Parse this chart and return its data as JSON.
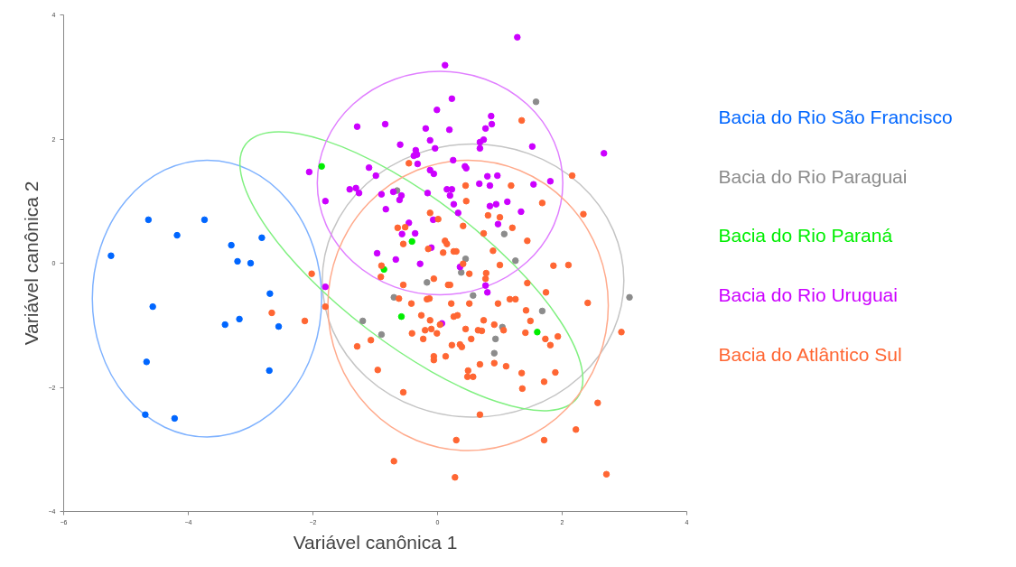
{
  "chart_data": {
    "type": "scatter",
    "xlabel": "Variável canônica 1",
    "ylabel": "Variável canônica 2",
    "xlim": [
      -6,
      4
    ],
    "ylim": [
      -4,
      4
    ],
    "xticks": [
      -6,
      -4,
      -2,
      0,
      2,
      4
    ],
    "yticks": [
      -4,
      -2,
      0,
      2,
      4
    ],
    "grid": false,
    "legend": "right",
    "marker": "circle",
    "series": [
      {
        "name": "Bacia do Rio São Francisco",
        "color": "#0066ff",
        "x": [
          -5.24,
          -4.64,
          -4.18,
          -3.74,
          -3.31,
          -3.21,
          -3.0,
          -2.82,
          -2.69,
          -3.41,
          -3.18,
          -2.55,
          -4.57,
          -4.67,
          -2.7,
          -4.69,
          -4.22
        ],
        "values": [
          0.12,
          0.7,
          0.45,
          0.7,
          0.29,
          0.03,
          0.0,
          0.41,
          -0.49,
          -0.99,
          -0.9,
          -1.02,
          -0.7,
          -1.59,
          -1.73,
          -2.44,
          -2.5
        ]
      },
      {
        "name": "Bacia do Rio Paraguai",
        "color": "#8c8c8c",
        "x": [
          1.58,
          1.07,
          0.45,
          1.25,
          -0.65,
          0.38,
          -0.17,
          -0.7,
          0.57,
          -1.2,
          -0.9,
          1.04,
          0.93,
          0.91,
          1.68,
          3.08
        ],
        "values": [
          2.6,
          0.47,
          0.07,
          0.04,
          1.17,
          -0.15,
          -0.31,
          -0.55,
          -0.52,
          -0.93,
          -1.15,
          -1.03,
          -1.22,
          -1.45,
          -0.77,
          -0.55
        ]
      },
      {
        "name": "Bacia do Rio Paraná",
        "color": "#00ee00",
        "x": [
          -1.86,
          -0.41,
          -0.86,
          -0.58,
          1.6
        ],
        "values": [
          1.56,
          0.35,
          -0.1,
          -0.86,
          -1.11
        ]
      },
      {
        "name": "Bacia do Rio Uruguai",
        "color": "#cc00ff",
        "x": [
          1.28,
          0.12,
          0.23,
          -0.01,
          0.86,
          0.87,
          0.77,
          0.74,
          0.68,
          0.68,
          1.52,
          2.67,
          -1.29,
          -0.84,
          -0.19,
          0.19,
          -0.6,
          -0.12,
          -0.04,
          -0.35,
          -0.38,
          -0.33,
          -0.32,
          0.25,
          0.44,
          0.46,
          -1.1,
          -0.99,
          -0.12,
          -0.06,
          0.8,
          0.96,
          0.67,
          0.84,
          1.54,
          1.81,
          -1.41,
          -1.31,
          -1.26,
          -0.9,
          -0.71,
          -0.58,
          -0.61,
          0.15,
          0.23,
          0.2,
          -0.16,
          -0.83,
          0.26,
          0.84,
          0.94,
          1.12,
          0.33,
          1.34,
          0.97,
          -0.46,
          -0.36,
          -0.57,
          -0.07,
          -0.97,
          -0.67,
          -0.1,
          -2.06,
          -1.8,
          -0.28,
          0.36,
          0.77,
          0.8,
          0.07,
          -1.8
        ],
        "values": [
          3.64,
          3.19,
          2.65,
          2.47,
          2.37,
          2.24,
          2.17,
          1.99,
          1.95,
          1.85,
          1.88,
          1.77,
          2.2,
          2.24,
          2.17,
          2.15,
          1.91,
          1.98,
          1.85,
          1.82,
          1.73,
          1.75,
          1.6,
          1.66,
          1.56,
          1.53,
          1.54,
          1.41,
          1.5,
          1.44,
          1.4,
          1.41,
          1.28,
          1.25,
          1.27,
          1.32,
          1.19,
          1.21,
          1.13,
          1.11,
          1.15,
          1.09,
          1.02,
          1.19,
          1.19,
          1.09,
          1.13,
          0.87,
          0.95,
          0.92,
          0.95,
          0.99,
          0.81,
          0.83,
          0.63,
          0.65,
          0.48,
          0.47,
          0.7,
          0.16,
          0.06,
          0.25,
          1.47,
          1.0,
          -0.01,
          -0.06,
          -0.36,
          -0.47,
          -0.97,
          -0.38
        ]
      },
      {
        "name": "Bacia do Atlântico Sul",
        "color": "#ff6633",
        "x": [
          1.35,
          -0.46,
          0.45,
          1.18,
          2.16,
          0.46,
          1.68,
          2.34,
          -0.12,
          0.01,
          0.81,
          1.0,
          0.41,
          1.2,
          -0.64,
          -0.52,
          0.74,
          0.12,
          0.15,
          -0.55,
          -0.15,
          0.09,
          0.26,
          0.3,
          0.89,
          1.44,
          -2.02,
          -0.9,
          -0.91,
          0.41,
          0.51,
          0.78,
          0.77,
          1.0,
          1.86,
          2.1,
          -0.06,
          -0.55,
          0.17,
          0.2,
          1.44,
          1.74,
          2.41,
          -1.8,
          -0.62,
          -0.17,
          -0.13,
          -0.42,
          0.22,
          0.51,
          0.97,
          1.16,
          1.25,
          1.42,
          1.49,
          -0.26,
          -0.12,
          0.26,
          0.32,
          0.74,
          0.91,
          0.04,
          0.45,
          0.65,
          0.71,
          1.06,
          1.41,
          -0.41,
          -0.2,
          -0.1,
          -0.01,
          -0.23,
          0.54,
          1.73,
          1.93,
          1.81,
          2.95,
          -1.29,
          -1.07,
          0.23,
          0.36,
          0.39,
          -0.06,
          -0.06,
          0.13,
          0.68,
          0.91,
          1.1,
          0.49,
          0.48,
          0.57,
          -0.96,
          1.35,
          1.89,
          1.71,
          1.36,
          -0.55,
          2.57,
          0.68,
          2.22,
          0.3,
          1.71,
          -0.7,
          0.28,
          2.71,
          -2.66,
          -2.13
        ],
        "values": [
          2.3,
          1.61,
          1.25,
          1.25,
          1.41,
          1.0,
          0.97,
          0.79,
          0.81,
          0.71,
          0.77,
          0.74,
          0.6,
          0.57,
          0.57,
          0.58,
          0.48,
          0.36,
          0.31,
          0.31,
          0.23,
          0.17,
          0.19,
          0.19,
          0.2,
          0.36,
          -0.17,
          -0.04,
          -0.22,
          -0.01,
          -0.17,
          -0.16,
          -0.25,
          -0.03,
          -0.04,
          -0.03,
          -0.25,
          -0.35,
          -0.35,
          -0.35,
          -0.32,
          -0.47,
          -0.64,
          -0.7,
          -0.57,
          -0.58,
          -0.57,
          -0.65,
          -0.65,
          -0.65,
          -0.65,
          -0.58,
          -0.58,
          -0.76,
          -0.93,
          -0.84,
          -0.92,
          -0.86,
          -0.84,
          -0.92,
          -0.99,
          -0.99,
          -1.06,
          -1.08,
          -1.09,
          -1.08,
          -1.12,
          -1.13,
          -1.08,
          -1.06,
          -1.13,
          -1.22,
          -1.22,
          -1.22,
          -1.18,
          -1.32,
          -1.11,
          -1.34,
          -1.24,
          -1.32,
          -1.31,
          -1.35,
          -1.5,
          -1.56,
          -1.5,
          -1.63,
          -1.61,
          -1.66,
          -1.73,
          -1.83,
          -1.83,
          -1.72,
          -1.77,
          -1.76,
          -1.91,
          -2.02,
          -2.08,
          -2.25,
          -2.44,
          -2.68,
          -2.85,
          -2.85,
          -3.19,
          -3.45,
          -3.4,
          -0.8,
          -0.93
        ]
      }
    ]
  }
}
